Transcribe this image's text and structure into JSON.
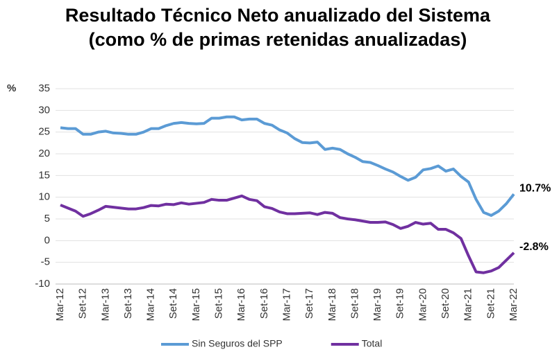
{
  "chart_data": {
    "type": "line",
    "title": [
      "Resultado Técnico Neto anualizado del Sistema",
      "(como % de primas retenidas anualizadas)"
    ],
    "y_label": "%",
    "categories": [
      "Mar-12",
      null,
      null,
      "Set-12",
      null,
      null,
      "Mar-13",
      null,
      null,
      "Set-13",
      null,
      null,
      "Mar-14",
      null,
      null,
      "Set-14",
      null,
      null,
      "Mar-15",
      null,
      null,
      "Set-15",
      null,
      null,
      "Mar-16",
      null,
      null,
      "Set-16",
      null,
      null,
      "Mar-17",
      null,
      null,
      "Set-17",
      null,
      null,
      "Mar-18",
      null,
      null,
      "Set-18",
      null,
      null,
      "Mar-19",
      null,
      null,
      "Set-19",
      null,
      null,
      "Mar-20",
      null,
      null,
      "Set-20",
      null,
      null,
      "Mar-21",
      null,
      null,
      "Set-21",
      null,
      null,
      "Mar-22"
    ],
    "series": [
      {
        "name": "Sin Seguros del SPP",
        "color": "#5b9bd5",
        "end_label": "10.7%",
        "values": [
          26,
          25.8,
          25.8,
          24.5,
          24.5,
          25,
          25.2,
          24.8,
          24.7,
          24.5,
          24.5,
          25,
          25.8,
          25.8,
          26.5,
          27,
          27.2,
          27,
          26.9,
          27,
          28.2,
          28.2,
          28.5,
          28.5,
          27.8,
          28,
          28,
          27,
          26.6,
          25.5,
          24.8,
          23.5,
          22.6,
          22.5,
          22.7,
          21,
          21.3,
          21,
          20,
          19.2,
          18.2,
          18,
          17.3,
          16.5,
          15.8,
          14.8,
          13.9,
          14.6,
          16.3,
          16.6,
          17.2,
          16,
          16.5,
          14.8,
          13.5,
          9.5,
          6.5,
          5.8,
          6.8,
          8.5,
          10.7
        ]
      },
      {
        "name": "Total",
        "color": "#7030a0",
        "end_label": "-2.8%",
        "values": [
          8.2,
          7.5,
          6.8,
          5.6,
          6.2,
          7,
          7.9,
          7.7,
          7.5,
          7.3,
          7.3,
          7.6,
          8.1,
          8,
          8.4,
          8.3,
          8.7,
          8.4,
          8.6,
          8.8,
          9.5,
          9.3,
          9.3,
          9.8,
          10.3,
          9.5,
          9.2,
          7.8,
          7.4,
          6.6,
          6.2,
          6.2,
          6.3,
          6.4,
          6,
          6.5,
          6.3,
          5.3,
          5,
          4.8,
          4.5,
          4.2,
          4.2,
          4.3,
          3.7,
          2.8,
          3.3,
          4.2,
          3.8,
          4,
          2.6,
          2.6,
          1.8,
          0.5,
          -3.5,
          -7.2,
          -7.4,
          -7,
          -6.2,
          -4.5,
          -2.8
        ]
      }
    ],
    "ylim": [
      -10,
      35
    ],
    "yticks": [
      -10,
      -5,
      0,
      5,
      10,
      15,
      20,
      25,
      30,
      35
    ],
    "grid": true
  }
}
